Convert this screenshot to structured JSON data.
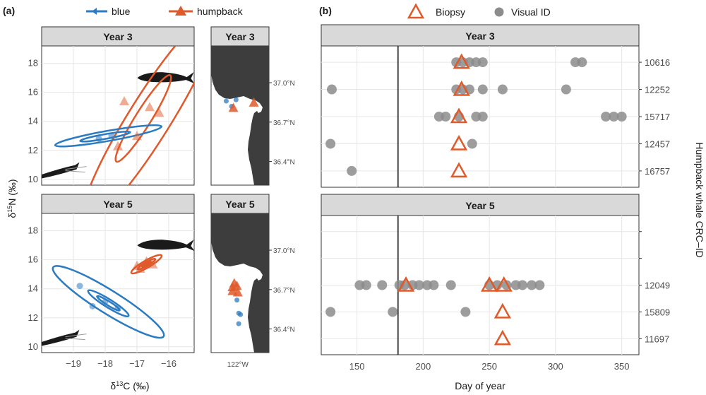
{
  "colors": {
    "blue": "#2b7bc2",
    "humpback": "#e0592a",
    "visual": "#8c8c8c",
    "land": "#3d3d3d",
    "fish": "#1a1a1a",
    "krill": "#1a1a1a"
  },
  "chart_data": [
    {
      "panel": "(a)",
      "type": "scatter",
      "legend": [
        {
          "name": "blue"
        },
        {
          "name": "humpback"
        }
      ],
      "xlabel_main": "δ",
      "xlabel_sup": "13",
      "xlabel_rest": "C (‰)",
      "ylabel_main": "δ",
      "ylabel_sup": "15",
      "ylabel_rest": "N (‰)",
      "xlim": [
        -20,
        -15.2
      ],
      "ylim": [
        9.6,
        19.2
      ],
      "xticks": [
        -19,
        -18,
        -17,
        -16
      ],
      "yticks": [
        10,
        12,
        14,
        16,
        18
      ],
      "facets": [
        {
          "label": "Year 3",
          "humpback_points": [
            [
              -17.4,
              15.4
            ],
            [
              -16.3,
              14.6
            ],
            [
              -16.6,
              15.0
            ],
            [
              -17.0,
              13.0
            ],
            [
              -17.6,
              12.3
            ]
          ],
          "blue_points": [
            [
              -18.2,
              12.8
            ],
            [
              -17.8,
              13.0
            ]
          ],
          "ellipses": [
            {
              "species": "humpback",
              "cx": -16.6,
              "cy": 14.2,
              "rx": 3.9,
              "ry": 1.45,
              "angle": 58
            },
            {
              "species": "humpback",
              "cx": -16.8,
              "cy": 14.2,
              "rx": 1.6,
              "ry": 0.55,
              "angle": 58
            },
            {
              "species": "blue",
              "cx": -17.9,
              "cy": 13.0,
              "rx": 1.7,
              "ry": 0.35,
              "angle": 10
            },
            {
              "species": "blue",
              "cx": -18.0,
              "cy": 12.95,
              "rx": 0.8,
              "ry": 0.16,
              "angle": 10
            }
          ],
          "fish_at": [
            -16.1,
            17.0
          ],
          "krill_at": [
            -19.3,
            10.4
          ]
        },
        {
          "label": "Year 5",
          "humpback_points": [
            [
              -17.0,
              15.6
            ],
            [
              -16.7,
              15.9
            ],
            [
              -16.5,
              15.7
            ],
            [
              -16.9,
              15.4
            ]
          ],
          "blue_points": [
            [
              -18.8,
              14.2
            ],
            [
              -18.0,
              13.1
            ],
            [
              -17.6,
              12.7
            ],
            [
              -18.4,
              12.8
            ]
          ],
          "ellipses": [
            {
              "species": "humpback",
              "cx": -16.7,
              "cy": 15.7,
              "rx": 0.55,
              "ry": 0.25,
              "angle": 30
            },
            {
              "species": "humpback",
              "cx": -16.7,
              "cy": 15.7,
              "rx": 0.32,
              "ry": 0.13,
              "angle": 30
            },
            {
              "species": "humpback",
              "cx": -16.7,
              "cy": 15.7,
              "rx": 0.16,
              "ry": 0.06,
              "angle": 30
            },
            {
              "species": "blue",
              "cx": -17.9,
              "cy": 13.1,
              "rx": 2.05,
              "ry": 0.8,
              "angle": -32
            },
            {
              "species": "blue",
              "cx": -17.9,
              "cy": 13.0,
              "rx": 0.75,
              "ry": 0.28,
              "angle": -32
            },
            {
              "species": "blue",
              "cx": -17.9,
              "cy": 13.0,
              "rx": 0.42,
              "ry": 0.14,
              "angle": -32
            }
          ],
          "fish_at": [
            -16.1,
            17.0
          ],
          "krill_at": [
            -19.3,
            10.4
          ]
        }
      ]
    },
    {
      "panel": "map",
      "type": "map",
      "ylabels": [
        "37.0°N",
        "36.7°N",
        "36.4°N"
      ],
      "xlabels": [
        "122°W"
      ],
      "facets": [
        {
          "label": "Year 3",
          "humpback": [
            [
              -122.05,
              36.81
            ],
            [
              -121.82,
              36.85
            ]
          ],
          "blue": [
            [
              -122.13,
              36.86
            ],
            [
              -122.02,
              36.87
            ],
            [
              -122.07,
              36.82
            ]
          ]
        },
        {
          "label": "Year 5",
          "humpback": [
            [
              -122.06,
              36.72
            ],
            [
              -122.01,
              36.73
            ],
            [
              -122.04,
              36.75
            ],
            [
              -122.0,
              36.68
            ],
            [
              -122.06,
              36.69
            ]
          ],
          "blue": [
            [
              -122.01,
              36.62
            ],
            [
              -121.99,
              36.52
            ],
            [
              -121.97,
              36.51
            ],
            [
              -121.99,
              36.44
            ]
          ]
        }
      ]
    },
    {
      "panel": "(b)",
      "type": "scatter",
      "legend": [
        {
          "name": "Biopsy"
        },
        {
          "name": "Visual ID"
        }
      ],
      "xlabel": "Day of year",
      "ylabel": "Humpback whale CRC–ID",
      "xlim": [
        123,
        363
      ],
      "xticks": [
        150,
        200,
        250,
        300,
        350
      ],
      "vline": 181,
      "facets": [
        {
          "label": "Year 3",
          "ids": [
            "10616",
            "12252",
            "15717",
            "12457",
            "16757"
          ],
          "visual": [
            [
              225,
              230,
              235,
              240,
              245,
              315,
              320
            ],
            [
              131,
              225,
              230,
              235,
              245,
              260,
              308
            ],
            [
              212,
              217,
              227,
              240,
              245,
              338,
              344,
              350
            ],
            [
              130,
              237
            ],
            [
              146
            ]
          ],
          "biopsy": [
            [
              229
            ],
            [
              229
            ],
            [
              227
            ],
            [
              227
            ],
            [
              227
            ]
          ]
        },
        {
          "label": "Year 5",
          "ids": [
            "",
            "",
            "12049",
            "15809",
            "11697"
          ],
          "visual": [
            [],
            [],
            [
              152,
              157,
              169,
              182,
              186,
              192,
              197,
              203,
              208,
              221,
              250,
              256,
              263,
              270,
              275,
              282,
              288
            ],
            [
              130,
              177,
              232
            ],
            []
          ],
          "biopsy": [
            [],
            [],
            [
              187,
              250,
              261
            ],
            [
              260
            ],
            [
              260
            ]
          ]
        }
      ]
    }
  ]
}
